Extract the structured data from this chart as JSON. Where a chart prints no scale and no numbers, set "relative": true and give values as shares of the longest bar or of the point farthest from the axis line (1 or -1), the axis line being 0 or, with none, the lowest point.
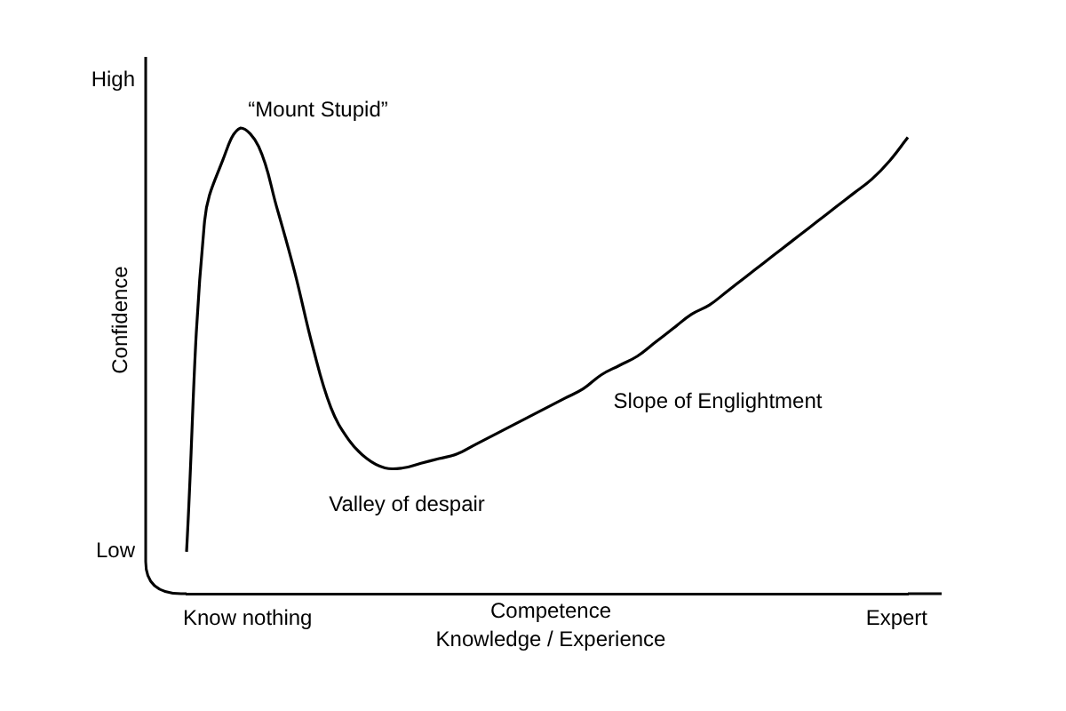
{
  "chart_data": {
    "type": "line",
    "relative": true,
    "ylabel": "Confidence",
    "xlabel": "Competence\nKnowledge / Experience",
    "annotations": [
      "High",
      "Low",
      "Know nothing",
      "Expert",
      "“Mount Stupid”",
      "Valley of despair",
      "Slope of Englightment"
    ],
    "categories": [
      null,
      null,
      null,
      null,
      null,
      null,
      null,
      null,
      null,
      null,
      null,
      null,
      null,
      null,
      null,
      null,
      null,
      null,
      null,
      null,
      null,
      null,
      null,
      null,
      null,
      null,
      null,
      null,
      null,
      null,
      null,
      null,
      null,
      null,
      null,
      null,
      null,
      null,
      null,
      null,
      null
    ],
    "series": [
      {
        "color": "#000000",
        "values": [
          0.09,
          0.8,
          0.93,
          1,
          0.96,
          0.83,
          0.69,
          0.53,
          0.4,
          0.33,
          0.29,
          0.27,
          0.27,
          0.28,
          0.29,
          0.3,
          0.32,
          0.34,
          0.36,
          0.38,
          0.4,
          0.42,
          0.44,
          0.47,
          0.49,
          0.51,
          0.54,
          0.57,
          0.6,
          0.62,
          0.65,
          0.68,
          0.71,
          0.74,
          0.77,
          0.8,
          0.83,
          0.86,
          0.89,
          0.93,
          0.98
        ]
      }
    ]
  }
}
